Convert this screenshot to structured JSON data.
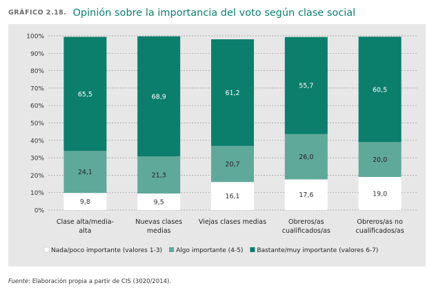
{
  "header": {
    "label": "GRÁFICO 2.18.",
    "title": "Opinión sobre la importancia del voto según clase social"
  },
  "source": {
    "prefix": "Fuente",
    "text": ": Elaboración propia a partir de CIS (3020/2014)."
  },
  "colors": {
    "nada": "#ffffff",
    "algo": "#5fa99b",
    "bastante": "#0b7e6c",
    "panel": "#e6e7e6",
    "title": "#0a7f6e"
  },
  "chart_data": {
    "type": "bar",
    "stacked": true,
    "grid": true,
    "legend_position": "bottom",
    "ylim": [
      0,
      100
    ],
    "yticks": [
      "0%",
      "10%",
      "20%",
      "30%",
      "40%",
      "50%",
      "60%",
      "70%",
      "80%",
      "90%",
      "100%"
    ],
    "categories": [
      [
        "Clase alta/media-",
        "alta"
      ],
      [
        "Nuevas clases",
        "medias"
      ],
      [
        "Viejas clases medias"
      ],
      [
        "Obreros/as",
        "cualificados/as"
      ],
      [
        "Obreros/as no",
        "cualificados/as"
      ]
    ],
    "series": [
      {
        "name": "Nada/poco importante (valores 1-3)",
        "values": [
          9.8,
          9.5,
          16.1,
          17.6,
          19.0
        ],
        "labels": [
          "9,8",
          "9,5",
          "16,1",
          "17,6",
          "19,0"
        ],
        "color": "#ffffff",
        "text_color": "#333333"
      },
      {
        "name": "Algo importante (4-5)",
        "values": [
          24.1,
          21.3,
          20.7,
          26.0,
          20.0
        ],
        "labels": [
          "24,1",
          "21,3",
          "20,7",
          "26,0",
          "20,0"
        ],
        "color": "#5fa99b",
        "text_color": "#1f1f1f"
      },
      {
        "name": "Bastante/muy importante (valores 6-7)",
        "values": [
          65.5,
          68.9,
          61.2,
          55.7,
          60.5
        ],
        "labels": [
          "65,5",
          "68,9",
          "61,2",
          "55,7",
          "60,5"
        ],
        "color": "#0b7e6c",
        "text_color": "#ffffff"
      }
    ]
  }
}
